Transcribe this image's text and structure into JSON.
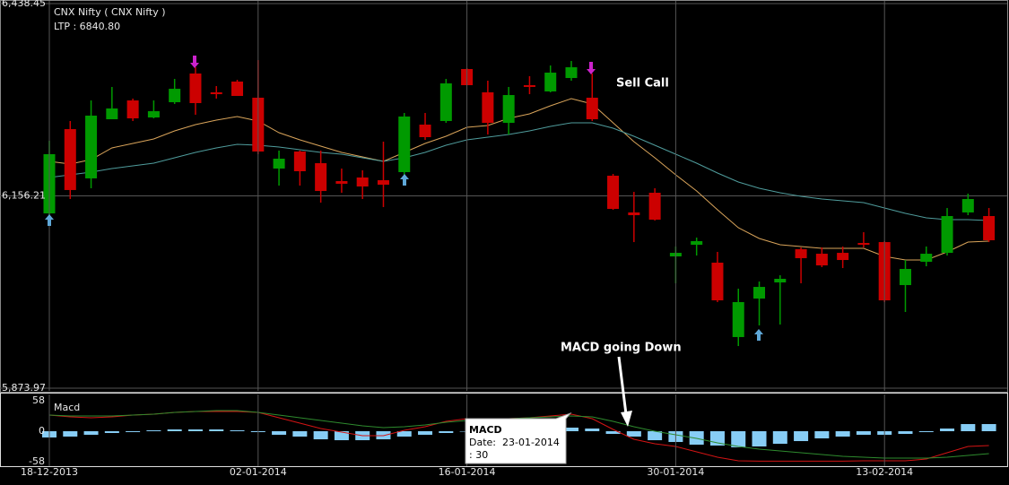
{
  "chart_data": [
    {
      "type": "candlestick",
      "title": "CNX Nifty ( CNX Nifty )",
      "subtitle": "LTP : 6840.80",
      "open": [
        6130.5,
        6254.2,
        6181.9,
        6268.7,
        6296.3,
        6271.3,
        6293.7,
        6335.8,
        6308.2,
        6324.0,
        6300.3,
        6196.3,
        6221.3,
        6204.2,
        6177.9,
        6183.2,
        6179.2,
        6191.1,
        6260.8,
        6266.1,
        6342.4,
        6308.2,
        6263.4,
        6318.7,
        6309.5,
        6329.2,
        6300.3,
        6185.8,
        6131.9,
        6160.8,
        6067.4,
        6084.5,
        6058.2,
        5949.0,
        6005.5,
        6029.2,
        6077.9,
        6071.3,
        6072.6,
        6087.1,
        6088.4,
        6025.3,
        6059.5,
        6072.6,
        6131.9,
        6126.6
      ],
      "high": [
        6237.1,
        6266.1,
        6296.3,
        6316.1,
        6299.0,
        6296.3,
        6327.9,
        6345.0,
        6317.4,
        6326.6,
        6355.5,
        6222.7,
        6222.7,
        6222.7,
        6196.3,
        6193.7,
        6235.8,
        6277.9,
        6277.9,
        6327.9,
        6343.7,
        6325.3,
        6316.1,
        6331.9,
        6347.6,
        6354.2,
        6335.8,
        6188.4,
        6162.1,
        6167.4,
        6081.9,
        6095.0,
        6074.0,
        6020.0,
        6030.5,
        6039.7,
        6080.5,
        6080.5,
        6081.9,
        6102.9,
        6089.8,
        6062.1,
        6081.9,
        6138.4,
        6159.5,
        6138.4
      ],
      "low": [
        6127.9,
        6151.6,
        6167.4,
        6268.7,
        6266.1,
        6270.0,
        6291.1,
        6275.3,
        6299.0,
        6302.9,
        6217.4,
        6171.3,
        6171.3,
        6146.3,
        6160.8,
        6151.6,
        6139.8,
        6187.1,
        6238.4,
        6263.4,
        6318.7,
        6246.3,
        6246.3,
        6305.5,
        6308.2,
        6325.3,
        6266.1,
        6135.8,
        6088.4,
        6120.0,
        6027.9,
        6068.7,
        6000.3,
        5935.8,
        5966.1,
        5967.4,
        6027.9,
        6051.6,
        6050.3,
        6080.5,
        6000.3,
        5985.8,
        6052.9,
        6068.7,
        6127.9,
        6088.4
      ],
      "close": [
        6217.4,
        6164.8,
        6274.0,
        6284.5,
        6270.0,
        6280.5,
        6313.4,
        6292.4,
        6305.5,
        6302.9,
        6221.3,
        6210.8,
        6192.4,
        6163.4,
        6174.0,
        6170.0,
        6172.6,
        6272.7,
        6242.4,
        6321.3,
        6318.7,
        6263.4,
        6304.2,
        6316.1,
        6337.1,
        6345.0,
        6268.7,
        6137.1,
        6127.9,
        6121.3,
        6072.6,
        6089.8,
        6002.9,
        6000.3,
        6022.6,
        6034.5,
        6064.8,
        6054.2,
        6062.1,
        6084.5,
        6002.9,
        6049.0,
        6071.3,
        6126.6,
        6151.6,
        6091.1
      ],
      "up_color": "#009a00",
      "down_color": "#cc0000",
      "series": [
        {
          "color": "#d9a45a",
          "values": [
            6206.9,
            6202.9,
            6209.5,
            6226.6,
            6233.2,
            6239.8,
            6251.6,
            6260.8,
            6267.4,
            6272.7,
            6266.1,
            6249.0,
            6238.4,
            6229.2,
            6220.0,
            6213.4,
            6206.9,
            6220.0,
            6233.2,
            6243.7,
            6256.9,
            6259.5,
            6270.0,
            6276.6,
            6288.4,
            6299.0,
            6291.1,
            6263.4,
            6235.8,
            6212.1,
            6187.1,
            6163.4,
            6135.8,
            6109.5,
            6093.7,
            6084.5,
            6081.9,
            6079.2,
            6079.2,
            6079.2,
            6067.4,
            6062.1,
            6062.1,
            6074.0,
            6088.4,
            6089.8
          ]
        },
        {
          "color": "#4f9c9c",
          "values": [
            6183.2,
            6187.1,
            6191.1,
            6196.3,
            6200.3,
            6204.2,
            6212.1,
            6220.0,
            6226.6,
            6231.9,
            6230.5,
            6227.9,
            6224.0,
            6220.0,
            6217.4,
            6212.1,
            6206.9,
            6212.1,
            6220.0,
            6230.5,
            6238.4,
            6242.4,
            6246.3,
            6251.6,
            6258.2,
            6263.4,
            6263.4,
            6255.5,
            6243.7,
            6230.5,
            6217.4,
            6204.2,
            6189.8,
            6176.6,
            6167.4,
            6160.8,
            6155.5,
            6151.6,
            6149.0,
            6146.3,
            6138.4,
            6130.5,
            6124.0,
            6121.3,
            6121.3,
            6120.0
          ]
        }
      ],
      "ylim": [
        5873.97,
        6438.45
      ],
      "yticks": [
        {
          "value": 5873.97,
          "label": "5,873.97"
        },
        {
          "value": 6156.21,
          "label": "6,156.21"
        },
        {
          "value": 6438.45,
          "label": "6,438.45"
        }
      ],
      "grid": true,
      "annotations": [
        "Sell Call"
      ]
    },
    {
      "type": "macd",
      "title": "Macd",
      "categories": [
        "18-12-2013",
        null,
        null,
        null,
        null,
        null,
        null,
        null,
        null,
        null,
        "02-01-2014",
        null,
        null,
        null,
        null,
        null,
        null,
        null,
        null,
        null,
        "16-01-2014",
        null,
        null,
        null,
        null,
        null,
        null,
        null,
        null,
        null,
        "30-01-2014",
        null,
        null,
        null,
        null,
        null,
        null,
        null,
        null,
        null,
        "13-02-2014",
        null,
        null,
        null,
        null,
        null
      ],
      "histogram": {
        "color": "#87cdf5",
        "values": [
          -11.9,
          -10.2,
          -6.8,
          -3.4,
          -1.7,
          1.7,
          3.4,
          3.4,
          3.4,
          1.7,
          -1.7,
          -6.8,
          -10.2,
          -15.4,
          -17.1,
          -17.1,
          -15.4,
          -10.2,
          -6.8,
          -3.4,
          0,
          3.4,
          5.1,
          6.8,
          6.8,
          6.8,
          5.1,
          -5.1,
          -10.2,
          -17.1,
          -20.5,
          -25.6,
          -27.3,
          -30.7,
          -29.0,
          -23.9,
          -18.8,
          -13.6,
          -10.2,
          -6.8,
          -6.8,
          -5.1,
          -1.7,
          5.1,
          13.6,
          13.6
        ]
      },
      "series": [
        {
          "color": "#d41414",
          "values": [
            30.7,
            27.3,
            25.6,
            27.3,
            30.7,
            32.4,
            35.8,
            37.5,
            37.5,
            37.5,
            35.8,
            25.6,
            15.4,
            5.1,
            -1.7,
            -8.5,
            -8.5,
            1.7,
            8.5,
            18.8,
            23.9,
            23.9,
            23.9,
            25.6,
            29.0,
            32.4,
            23.9,
            3.4,
            -15.4,
            -23.9,
            -29.0,
            -39.2,
            -49.5,
            -56.3,
            -57.0,
            -57.0,
            -57.0,
            -57.0,
            -57.0,
            -56.3,
            -56.3,
            -56.3,
            -52.9,
            -40.9,
            -29.0,
            -27.3
          ]
        },
        {
          "color": "#2e8b2e",
          "values": [
            30.7,
            29.0,
            29.0,
            29.0,
            30.7,
            32.4,
            35.8,
            37.5,
            39.2,
            39.2,
            35.8,
            30.7,
            25.6,
            20.5,
            15.4,
            10.2,
            6.8,
            8.5,
            11.9,
            17.1,
            20.5,
            22.2,
            23.9,
            25.6,
            27.3,
            29.0,
            27.3,
            18.8,
            8.5,
            0,
            -6.8,
            -13.6,
            -22.2,
            -29.0,
            -34.1,
            -37.5,
            -40.9,
            -44.4,
            -47.8,
            -49.5,
            -51.2,
            -51.2,
            -51.2,
            -49.5,
            -46.1,
            -42.6
          ]
        }
      ],
      "ylim": [
        -58,
        58
      ],
      "yticks": [
        -58,
        0,
        58
      ],
      "annotations": [
        "MACD going Down"
      ],
      "tooltip": {
        "title": "MACD",
        "lines": [
          "Date:  23-01-2014",
          ": 30"
        ]
      }
    }
  ]
}
